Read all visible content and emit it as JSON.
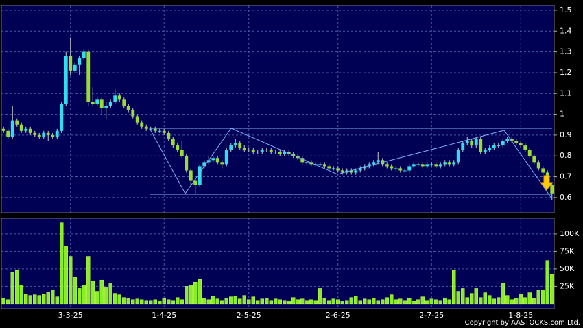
{
  "chart_data": {
    "type": "candlestick",
    "copyright": "Copyright by AASTOCKS.com Ltd.",
    "up_color": "#33ddee",
    "down_color": "#99dd33",
    "volume_color": "#88ee22",
    "grid": true,
    "categories": [
      null,
      null,
      null,
      null,
      null,
      null,
      null,
      null,
      null,
      null,
      null,
      null,
      null,
      null,
      null,
      "3-3-25",
      null,
      null,
      null,
      null,
      null,
      null,
      null,
      null,
      null,
      null,
      null,
      null,
      null,
      null,
      null,
      null,
      null,
      null,
      null,
      null,
      "1-4-25",
      null,
      null,
      null,
      null,
      null,
      null,
      null,
      null,
      null,
      null,
      null,
      null,
      null,
      null,
      null,
      null,
      null,
      null,
      "2-5-25",
      null,
      null,
      null,
      null,
      null,
      null,
      null,
      null,
      null,
      null,
      null,
      null,
      null,
      null,
      null,
      null,
      null,
      null,
      null,
      "2-6-25",
      null,
      null,
      null,
      null,
      null,
      null,
      null,
      null,
      null,
      null,
      null,
      null,
      null,
      null,
      null,
      null,
      null,
      null,
      null,
      null,
      "2-7-25",
      null,
      null,
      null,
      null,
      null,
      null,
      null,
      null,
      null,
      null,
      null,
      null,
      null,
      null,
      null,
      null,
      null,
      null,
      null,
      "1-8-25",
      null,
      null,
      null,
      null,
      null,
      null,
      null
    ],
    "open": [
      0.93,
      0.92,
      0.89,
      0.97,
      0.95,
      0.92,
      0.93,
      0.91,
      0.9,
      0.89,
      0.91,
      0.9,
      0.89,
      0.92,
      1.05,
      1.28,
      1.21,
      1.24,
      1.27,
      1.3,
      1.06,
      1.05,
      1.07,
      1.03,
      1.04,
      1.06,
      1.09,
      1.07,
      1.04,
      1.02,
      0.99,
      0.96,
      0.94,
      0.93,
      0.93,
      0.92,
      0.92,
      0.91,
      0.88,
      0.85,
      0.83,
      0.8,
      0.73,
      0.68,
      0.66,
      0.75,
      0.77,
      0.78,
      0.79,
      0.77,
      0.76,
      0.83,
      0.85,
      0.86,
      0.84,
      0.83,
      0.83,
      0.82,
      0.82,
      0.83,
      0.83,
      0.82,
      0.82,
      0.81,
      0.82,
      0.81,
      0.8,
      0.79,
      0.77,
      0.77,
      0.76,
      0.76,
      0.76,
      0.75,
      0.74,
      0.74,
      0.73,
      0.72,
      0.73,
      0.72,
      0.73,
      0.74,
      0.75,
      0.76,
      0.77,
      0.78,
      0.76,
      0.75,
      0.74,
      0.74,
      0.73,
      0.73,
      0.75,
      0.76,
      0.76,
      0.75,
      0.76,
      0.76,
      0.75,
      0.76,
      0.77,
      0.76,
      0.77,
      0.83,
      0.86,
      0.87,
      0.85,
      0.88,
      0.82,
      0.83,
      0.84,
      0.85,
      0.85,
      0.87,
      0.88,
      0.87,
      0.86,
      0.85,
      0.83,
      0.8,
      0.77,
      0.74,
      0.72,
      0.66
    ],
    "high": [
      0.94,
      0.93,
      1.04,
      0.98,
      0.96,
      0.94,
      0.94,
      0.92,
      0.91,
      0.92,
      0.92,
      0.91,
      0.93,
      1.06,
      1.3,
      1.37,
      1.25,
      1.28,
      1.31,
      1.31,
      1.13,
      1.08,
      1.08,
      1.06,
      1.07,
      1.12,
      1.1,
      1.08,
      1.05,
      1.03,
      1.0,
      0.97,
      0.95,
      0.94,
      0.94,
      0.93,
      0.93,
      0.92,
      0.89,
      0.86,
      0.87,
      0.81,
      0.74,
      0.69,
      0.76,
      0.78,
      0.8,
      0.8,
      0.8,
      0.78,
      0.84,
      0.86,
      0.88,
      0.87,
      0.85,
      0.84,
      0.84,
      0.83,
      0.84,
      0.84,
      0.84,
      0.83,
      0.83,
      0.83,
      0.83,
      0.82,
      0.81,
      0.8,
      0.78,
      0.78,
      0.77,
      0.77,
      0.77,
      0.76,
      0.75,
      0.75,
      0.74,
      0.74,
      0.74,
      0.74,
      0.75,
      0.76,
      0.77,
      0.78,
      0.82,
      0.79,
      0.77,
      0.76,
      0.75,
      0.75,
      0.74,
      0.76,
      0.77,
      0.77,
      0.77,
      0.77,
      0.77,
      0.77,
      0.77,
      0.78,
      0.78,
      0.78,
      0.84,
      0.87,
      0.89,
      0.88,
      0.89,
      0.89,
      0.84,
      0.85,
      0.86,
      0.86,
      0.88,
      0.89,
      0.89,
      0.88,
      0.87,
      0.86,
      0.84,
      0.81,
      0.78,
      0.75,
      0.73,
      0.67
    ],
    "low": [
      0.91,
      0.88,
      0.88,
      0.94,
      0.91,
      0.91,
      0.9,
      0.89,
      0.88,
      0.88,
      0.87,
      0.88,
      0.88,
      0.91,
      1.04,
      1.19,
      1.2,
      1.19,
      1.26,
      1.04,
      1.04,
      1.04,
      1.0,
      0.98,
      1.03,
      1.05,
      1.06,
      1.03,
      1.01,
      0.98,
      0.95,
      0.93,
      0.92,
      0.92,
      0.91,
      0.91,
      0.9,
      0.87,
      0.84,
      0.82,
      0.79,
      0.72,
      0.66,
      0.62,
      0.65,
      0.74,
      0.76,
      0.77,
      0.76,
      0.74,
      0.75,
      0.82,
      0.84,
      0.83,
      0.82,
      0.82,
      0.81,
      0.81,
      0.81,
      0.82,
      0.81,
      0.81,
      0.8,
      0.8,
      0.8,
      0.79,
      0.78,
      0.76,
      0.76,
      0.75,
      0.75,
      0.75,
      0.74,
      0.73,
      0.73,
      0.72,
      0.71,
      0.71,
      0.71,
      0.71,
      0.72,
      0.73,
      0.74,
      0.75,
      0.76,
      0.75,
      0.74,
      0.73,
      0.73,
      0.72,
      0.72,
      0.72,
      0.74,
      0.75,
      0.74,
      0.74,
      0.75,
      0.74,
      0.74,
      0.75,
      0.75,
      0.75,
      0.76,
      0.82,
      0.85,
      0.84,
      0.84,
      0.81,
      0.81,
      0.82,
      0.83,
      0.84,
      0.84,
      0.86,
      0.86,
      0.85,
      0.84,
      0.82,
      0.79,
      0.76,
      0.73,
      0.71,
      0.65,
      0.59
    ],
    "close": [
      0.92,
      0.89,
      0.97,
      0.95,
      0.92,
      0.93,
      0.91,
      0.9,
      0.89,
      0.91,
      0.9,
      0.89,
      0.92,
      1.05,
      1.28,
      1.21,
      1.24,
      1.27,
      1.3,
      1.06,
      1.05,
      1.07,
      1.03,
      1.04,
      1.06,
      1.09,
      1.07,
      1.04,
      1.02,
      0.99,
      0.96,
      0.94,
      0.93,
      0.93,
      0.92,
      0.92,
      0.91,
      0.88,
      0.85,
      0.83,
      0.8,
      0.73,
      0.68,
      0.66,
      0.75,
      0.77,
      0.78,
      0.79,
      0.77,
      0.76,
      0.83,
      0.85,
      0.86,
      0.84,
      0.83,
      0.83,
      0.82,
      0.82,
      0.83,
      0.83,
      0.82,
      0.82,
      0.81,
      0.82,
      0.81,
      0.8,
      0.79,
      0.77,
      0.77,
      0.76,
      0.76,
      0.76,
      0.75,
      0.74,
      0.74,
      0.73,
      0.72,
      0.73,
      0.72,
      0.73,
      0.74,
      0.75,
      0.76,
      0.77,
      0.78,
      0.76,
      0.75,
      0.74,
      0.74,
      0.73,
      0.73,
      0.75,
      0.76,
      0.76,
      0.75,
      0.76,
      0.76,
      0.75,
      0.76,
      0.77,
      0.76,
      0.77,
      0.83,
      0.86,
      0.87,
      0.85,
      0.88,
      0.82,
      0.83,
      0.84,
      0.85,
      0.85,
      0.87,
      0.88,
      0.87,
      0.86,
      0.85,
      0.83,
      0.8,
      0.77,
      0.74,
      0.72,
      0.66,
      0.62
    ],
    "volume": [
      8000,
      6000,
      45000,
      48000,
      27000,
      14000,
      12000,
      13000,
      12000,
      14000,
      17000,
      20000,
      10000,
      116000,
      83000,
      68000,
      38000,
      22000,
      27000,
      68000,
      33000,
      18000,
      34000,
      24000,
      30000,
      15000,
      13000,
      9000,
      8000,
      6000,
      7000,
      6000,
      5000,
      5000,
      6000,
      4000,
      8000,
      6000,
      5000,
      9000,
      6000,
      25000,
      27000,
      31000,
      35000,
      8000,
      6000,
      11000,
      7000,
      5000,
      8000,
      10000,
      11000,
      7000,
      12000,
      6000,
      10000,
      5000,
      7000,
      8000,
      5000,
      7000,
      6000,
      5000,
      4000,
      9000,
      6000,
      7000,
      5000,
      6000,
      5000,
      22000,
      8000,
      5000,
      7000,
      6000,
      4000,
      5000,
      9000,
      11000,
      5000,
      7000,
      6000,
      8000,
      5000,
      6000,
      9000,
      13000,
      6000,
      7000,
      5000,
      8000,
      4000,
      6000,
      10000,
      5000,
      7000,
      6000,
      5000,
      8000,
      6000,
      48000,
      18000,
      22000,
      9000,
      15000,
      22000,
      9000,
      16000,
      12000,
      7000,
      9000,
      30000,
      12000,
      6000,
      8000,
      14000,
      9000,
      16000,
      8000,
      20000,
      20000,
      62000,
      42000
    ],
    "ylim": [
      0.527,
      1.523
    ],
    "yticks": [
      0.6,
      0.7,
      0.8,
      0.9,
      1,
      1.1,
      1.2,
      1.3,
      1.4,
      1.5
    ],
    "y2lim": [
      -7000,
      122500
    ],
    "y2ticks": [
      {
        "value": 25000,
        "label": "25K"
      },
      {
        "value": 50000,
        "label": "50K"
      },
      {
        "value": 75000,
        "label": "75K"
      },
      {
        "value": 100000,
        "label": "100K"
      }
    ]
  }
}
